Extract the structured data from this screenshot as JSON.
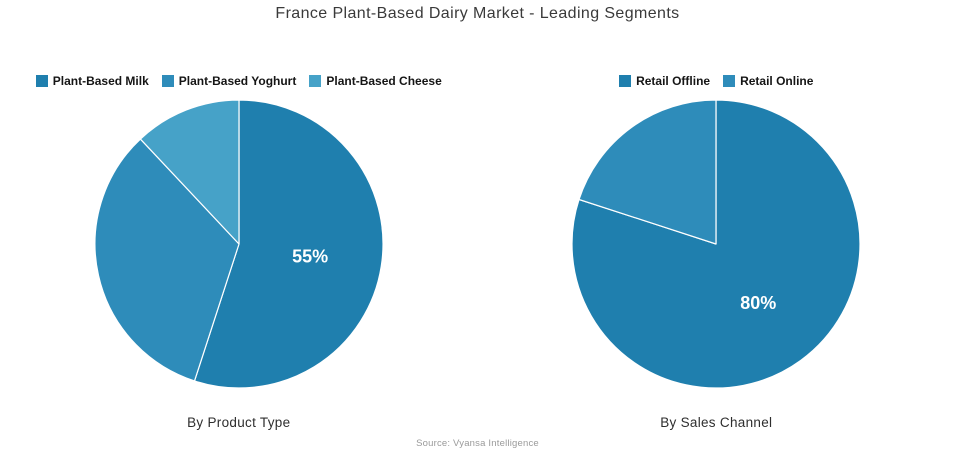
{
  "page_title": "France Plant-Based Dairy Market - Leading Segments",
  "source_note": "Source: Vyansa Intelligence",
  "accent_colors": {
    "blue_dark": "#1f7fae",
    "blue_medium": "#2e8cba",
    "blue_light": "#46a2c8"
  },
  "chart_data": [
    {
      "type": "pie",
      "title": "By Product Type",
      "categories": [
        "Plant-Based Milk",
        "Plant-Based Yoghurt",
        "Plant-Based Cheese"
      ],
      "values": [
        55,
        33,
        12
      ],
      "slice_labels": [
        "55%",
        "",
        ""
      ],
      "colors": [
        "#1f7fae",
        "#2e8cba",
        "#46a2c8"
      ],
      "legend_position": "top",
      "start_angle_deg": 0,
      "direction": "clockwise"
    },
    {
      "type": "pie",
      "title": "By Sales Channel",
      "categories": [
        "Retail Offline",
        "Retail Online"
      ],
      "values": [
        80,
        20
      ],
      "slice_labels": [
        "80%",
        ""
      ],
      "colors": [
        "#1f7fae",
        "#2e8cba"
      ],
      "legend_position": "top",
      "start_angle_deg": 0,
      "direction": "clockwise"
    }
  ]
}
